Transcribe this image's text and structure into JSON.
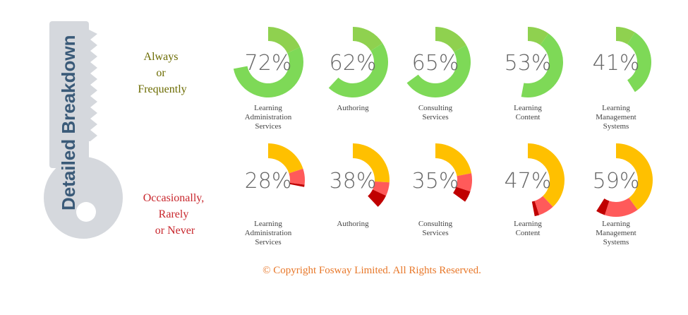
{
  "side_label": "Detailed Breakdown",
  "rows": [
    {
      "label": [
        "Always",
        "or",
        "Frequently"
      ],
      "label_color": "#6b6b00",
      "charts": [
        {
          "name": "Learning Administration Services",
          "label_lines": [
            "Learning",
            "Administration",
            "Services"
          ],
          "percent": "72%",
          "segments": [
            {
              "value": 18,
              "color": "#8fd14f"
            },
            {
              "value": 54,
              "color": "#7ed957"
            }
          ]
        },
        {
          "name": "Authoring",
          "label_lines": [
            "Authoring"
          ],
          "percent": "62%",
          "segments": [
            {
              "value": 16,
              "color": "#8fd14f"
            },
            {
              "value": 46,
              "color": "#7ed957"
            }
          ]
        },
        {
          "name": "Consulting Services",
          "label_lines": [
            "Consulting",
            "Services"
          ],
          "percent": "65%",
          "segments": [
            {
              "value": 17,
              "color": "#8fd14f"
            },
            {
              "value": 48,
              "color": "#7ed957"
            }
          ]
        },
        {
          "name": "Learning Content",
          "label_lines": [
            "Learning",
            "Content"
          ],
          "percent": "53%",
          "segments": [
            {
              "value": 10,
              "color": "#8fd14f"
            },
            {
              "value": 43,
              "color": "#7ed957"
            }
          ]
        },
        {
          "name": "Learning Management Systems",
          "label_lines": [
            "Learning",
            "Management",
            "Systems"
          ],
          "percent": "41%",
          "segments": [
            {
              "value": 9,
              "color": "#8fd14f"
            },
            {
              "value": 32,
              "color": "#7ed957"
            }
          ]
        }
      ]
    },
    {
      "label": [
        "Occasionally,",
        "Rarely",
        "or Never"
      ],
      "label_color": "#c8262c",
      "charts": [
        {
          "name": "Learning Administration Services",
          "label_lines": [
            "Learning",
            "Administration",
            "Services"
          ],
          "percent": "28%",
          "segments": [
            {
              "value": 20,
              "color": "#ffc000"
            },
            {
              "value": 7,
              "color": "#ff5a5a"
            },
            {
              "value": 1,
              "color": "#c00000"
            }
          ]
        },
        {
          "name": "Authoring",
          "label_lines": [
            "Authoring"
          ],
          "percent": "38%",
          "segments": [
            {
              "value": 26,
              "color": "#ffc000"
            },
            {
              "value": 6,
              "color": "#ff5a5a"
            },
            {
              "value": 6,
              "color": "#c00000"
            }
          ]
        },
        {
          "name": "Consulting Services",
          "label_lines": [
            "Consulting",
            "Services"
          ],
          "percent": "35%",
          "segments": [
            {
              "value": 22,
              "color": "#ffc000"
            },
            {
              "value": 8,
              "color": "#ff5a5a"
            },
            {
              "value": 5,
              "color": "#c00000"
            }
          ]
        },
        {
          "name": "Learning Content",
          "label_lines": [
            "Learning",
            "Content"
          ],
          "percent": "47%",
          "segments": [
            {
              "value": 38,
              "color": "#ffc000"
            },
            {
              "value": 7,
              "color": "#ff5a5a"
            },
            {
              "value": 2,
              "color": "#c00000"
            }
          ]
        },
        {
          "name": "Learning Management Systems",
          "label_lines": [
            "Learning",
            "Management",
            "Systems"
          ],
          "percent": "59%",
          "segments": [
            {
              "value": 40,
              "color": "#ffc000"
            },
            {
              "value": 15,
              "color": "#ff5a5a"
            },
            {
              "value": 4,
              "color": "#c00000"
            }
          ]
        }
      ]
    }
  ],
  "chart_data": {
    "type": "pie",
    "categories": [
      "Learning Administration Services",
      "Authoring",
      "Consulting Services",
      "Learning Content",
      "Learning Management Systems"
    ],
    "series": [
      {
        "name": "Always or Frequently",
        "values": [
          72,
          62,
          65,
          53,
          41
        ]
      },
      {
        "name": "Occasionally, Rarely or Never",
        "values": [
          28,
          38,
          35,
          47,
          59
        ]
      }
    ]
  },
  "copyright": "© Copyright Fosway Limited. All Rights Reserved."
}
